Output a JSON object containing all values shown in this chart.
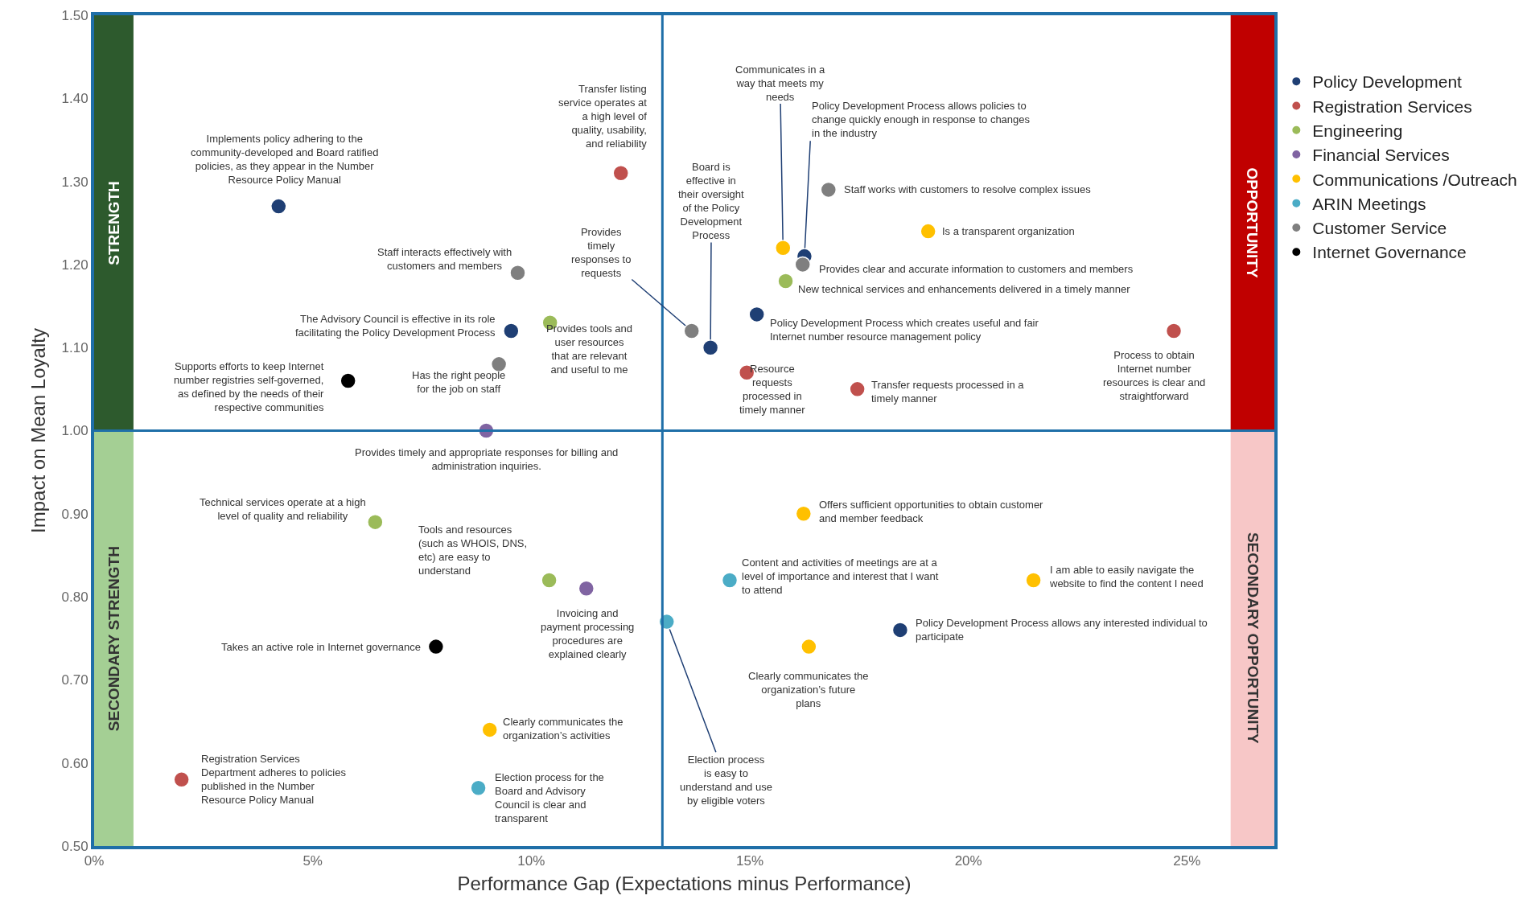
{
  "chart_data": {
    "type": "scatter",
    "xlabel": "Performance Gap (Expectations minus Performance)",
    "ylabel": "Impact on Mean Loyalty",
    "xlim": [
      0,
      27
    ],
    "ylim": [
      0.5,
      1.5
    ],
    "xticks": [
      {
        "value": 0,
        "label": "0%"
      },
      {
        "value": 5,
        "label": "5%"
      },
      {
        "value": 10,
        "label": "10%"
      },
      {
        "value": 15,
        "label": "15%"
      },
      {
        "value": 20,
        "label": "20%"
      },
      {
        "value": 25,
        "label": "25%"
      }
    ],
    "yticks": [
      {
        "value": 0.5,
        "label": "0.50"
      },
      {
        "value": 0.6,
        "label": "0.60"
      },
      {
        "value": 0.7,
        "label": "0.70"
      },
      {
        "value": 0.8,
        "label": "0.80"
      },
      {
        "value": 0.9,
        "label": "0.90"
      },
      {
        "value": 1.0,
        "label": "1.00"
      },
      {
        "value": 1.1,
        "label": "1.10"
      },
      {
        "value": 1.2,
        "label": "1.20"
      },
      {
        "value": 1.3,
        "label": "1.30"
      },
      {
        "value": 1.4,
        "label": "1.40"
      },
      {
        "value": 1.5,
        "label": "1.50"
      }
    ],
    "grid": false,
    "legend": "right",
    "marker": "circle",
    "ref_lines": [
      {
        "axis": "x",
        "value": 13,
        "color": "#1f6fa8"
      },
      {
        "axis": "y",
        "value": 1.0,
        "color": "#1f6fa8"
      }
    ],
    "bands": [
      {
        "axis": "x",
        "from": 0,
        "to": 0.9,
        "label": "STRENGTH",
        "color": "#2d5a2d"
      },
      {
        "axis": "x",
        "from": 0,
        "to": 0.9,
        "label": "SECONDARY STRENGTH",
        "color": "#a4cf94"
      },
      {
        "axis": "x",
        "from": 26,
        "to": 27,
        "label": "OPPORTUNITY",
        "color": "#c00000"
      },
      {
        "axis": "x",
        "from": 26,
        "to": 27,
        "label": "SECONDARY OPPORTUNITY",
        "color": "#f7c7c7"
      }
    ],
    "series": [
      {
        "name": "Policy Development",
        "color": "#1f3f74",
        "x": [
          4.22,
          9.54,
          14.1,
          15.16,
          16.25,
          18.44
        ],
        "values": [
          1.27,
          1.12,
          1.1,
          1.14,
          1.21,
          0.76
        ]
      },
      {
        "name": "Registration Services",
        "color": "#c0504d",
        "x": [
          12.05,
          14.93,
          17.46,
          24.7,
          2.0
        ],
        "values": [
          1.31,
          1.07,
          1.05,
          1.12,
          0.58
        ]
      },
      {
        "name": "Engineering",
        "color": "#9bbb59",
        "x": [
          10.43,
          15.82,
          6.43,
          10.41
        ],
        "values": [
          1.13,
          1.18,
          0.89,
          0.82
        ]
      },
      {
        "name": "Financial Services",
        "color": "#8064a2",
        "x": [
          8.97,
          11.26
        ],
        "values": [
          1.0,
          0.81
        ]
      },
      {
        "name": "Communications /Outreach",
        "color": "#ffc000",
        "x": [
          15.76,
          19.08,
          16.23,
          21.49,
          16.35,
          9.05
        ],
        "values": [
          1.22,
          1.24,
          0.9,
          0.82,
          0.74,
          0.64
        ]
      },
      {
        "name": "ARIN Meetings",
        "color": "#4bacc6",
        "x": [
          14.54,
          13.1,
          8.79
        ],
        "values": [
          0.82,
          0.77,
          0.57
        ]
      },
      {
        "name": "Customer Service",
        "color": "#7f7f7f",
        "x": [
          16.8,
          16.21,
          9.69,
          9.26,
          13.67
        ],
        "values": [
          1.29,
          1.2,
          1.19,
          1.08,
          1.12
        ]
      },
      {
        "name": "Internet Governance",
        "color": "#000000",
        "x": [
          5.81,
          7.82
        ],
        "values": [
          1.06,
          0.74
        ]
      }
    ],
    "annotations": [
      {
        "text": "Implements policy adhering to the community-developed and Board ratified policies, as they appear in the Number Resource Policy Manual",
        "x": 4.22,
        "y": 1.27
      },
      {
        "text": "The Advisory Council is effective in its role facilitating the Policy Development Process",
        "x": 9.54,
        "y": 1.12
      },
      {
        "text": "Board is effective in their oversight of the Policy Development Process",
        "x": 14.1,
        "y": 1.1
      },
      {
        "text": "Policy Development Process which creates useful and fair Internet number resource management policy",
        "x": 15.16,
        "y": 1.14
      },
      {
        "text": "Policy Development Process allows policies to change quickly enough in response to changes in the industry",
        "x": 16.25,
        "y": 1.21
      },
      {
        "text": "Policy Development Process allows any interested individual to participate",
        "x": 18.44,
        "y": 0.76
      },
      {
        "text": "Transfer listing service operates at a high level of quality, usability, and reliability",
        "x": 12.05,
        "y": 1.31
      },
      {
        "text": "Resource requests processed in timely manner",
        "x": 14.93,
        "y": 1.07
      },
      {
        "text": "Transfer requests processed in a timely manner",
        "x": 17.46,
        "y": 1.05
      },
      {
        "text": "Process to obtain Internet number resources is clear and straightforward",
        "x": 24.7,
        "y": 1.12
      },
      {
        "text": "Registration Services Department adheres to policies published in the Number Resource Policy Manual",
        "x": 2.0,
        "y": 0.58
      },
      {
        "text": "Provides tools and user resources that are relevant and useful to me",
        "x": 10.43,
        "y": 1.13
      },
      {
        "text": "New technical services and enhancements delivered in a timely manner",
        "x": 15.82,
        "y": 1.18
      },
      {
        "text": "Technical services operate at a high level of quality and reliability",
        "x": 6.43,
        "y": 0.89
      },
      {
        "text": "Tools and resources (such as WHOIS, DNS, etc) are easy to understand",
        "x": 10.41,
        "y": 0.82
      },
      {
        "text": "Provides timely and appropriate responses for billing and administration inquiries.",
        "x": 8.97,
        "y": 1.0
      },
      {
        "text": "Invoicing and payment processing procedures are explained clearly",
        "x": 11.26,
        "y": 0.81
      },
      {
        "text": "Communicates in a way that meets my needs",
        "x": 15.76,
        "y": 1.22
      },
      {
        "text": "Is a transparent organization",
        "x": 19.08,
        "y": 1.24
      },
      {
        "text": "Offers sufficient opportunities to obtain customer and member feedback",
        "x": 16.23,
        "y": 0.9
      },
      {
        "text": "I am able to easily navigate the website to find the content I need",
        "x": 21.49,
        "y": 0.82
      },
      {
        "text": "Clearly communicates the organization’s future plans",
        "x": 16.35,
        "y": 0.74
      },
      {
        "text": "Clearly communicates the organization’s activities",
        "x": 9.05,
        "y": 0.64
      },
      {
        "text": "Content and activities of meetings are at a level of importance and interest that I want to attend",
        "x": 14.54,
        "y": 0.82
      },
      {
        "text": "Election process is easy to understand and use by eligible voters",
        "x": 13.1,
        "y": 0.77
      },
      {
        "text": "Election process for the Board and Advisory Council is clear and transparent",
        "x": 8.79,
        "y": 0.57
      },
      {
        "text": "Staff works with customers to resolve complex issues",
        "x": 16.8,
        "y": 1.29
      },
      {
        "text": "Provides clear and accurate information to customers and members",
        "x": 16.21,
        "y": 1.2
      },
      {
        "text": "Staff interacts effectively with customers and members",
        "x": 9.69,
        "y": 1.19
      },
      {
        "text": "Has the right people for the job on staff",
        "x": 9.26,
        "y": 1.08
      },
      {
        "text": "Provides timely responses to requests",
        "x": 13.67,
        "y": 1.12
      },
      {
        "text": "Supports efforts to keep Internet number registries self-governed, as defined by the needs of their respective communities",
        "x": 5.81,
        "y": 1.06
      },
      {
        "text": "Takes an active role in Internet governance",
        "x": 7.82,
        "y": 0.74
      }
    ]
  }
}
